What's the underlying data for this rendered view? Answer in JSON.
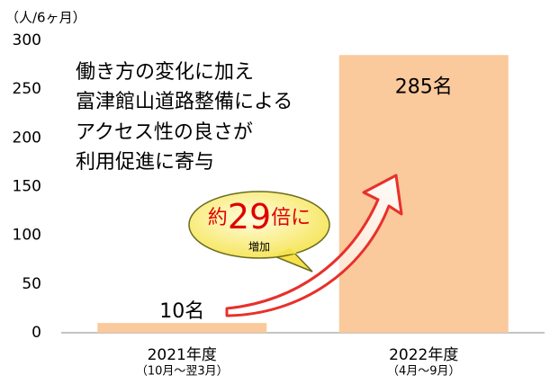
{
  "chart_data": {
    "type": "bar",
    "unit_label": "（人/6ヶ月）",
    "categories": [
      "2021年度",
      "2022年度"
    ],
    "category_sublabels": [
      "（10月～翌3月）",
      "（4月～9月）"
    ],
    "values": [
      10,
      285
    ],
    "value_labels": [
      "10名",
      "285名"
    ],
    "color": "#fac99c",
    "ylim": [
      0,
      300
    ],
    "yticks": [
      0,
      50,
      100,
      150,
      200,
      250,
      300
    ],
    "annotation_lines": [
      "働き方の変化に加え",
      "富津館山道路整備による",
      "アクセス性の良さが",
      "利用促進に寄与"
    ],
    "callout": {
      "parts": [
        "約",
        "29",
        "倍に"
      ],
      "sub": "増加"
    }
  }
}
